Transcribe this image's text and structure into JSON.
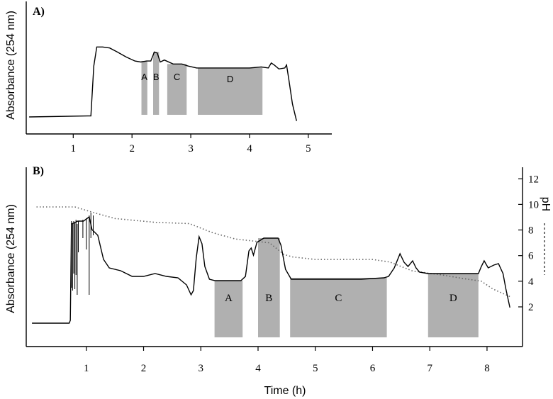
{
  "chart_data": [
    {
      "panel": "A)",
      "type": "line",
      "ylabel": "Absorbance (254 nm)",
      "xlabel": "",
      "xlim": [
        0.2,
        5.4
      ],
      "x_ticks": [
        1,
        2,
        3,
        4,
        5
      ],
      "x_tick_labels": [
        "1",
        "2",
        "3",
        "4",
        "5"
      ],
      "ylim": [
        0,
        1
      ],
      "series": [
        {
          "name": "Absorbance (254 nm)",
          "points": [
            [
              0.25,
              0.17
            ],
            [
              1.25,
              0.18
            ],
            [
              1.3,
              0.18
            ],
            [
              1.35,
              0.68
            ],
            [
              1.4,
              0.87
            ],
            [
              1.5,
              0.87
            ],
            [
              1.62,
              0.86
            ],
            [
              1.75,
              0.82
            ],
            [
              1.9,
              0.77
            ],
            [
              2.05,
              0.73
            ],
            [
              2.15,
              0.72
            ],
            [
              2.25,
              0.73
            ],
            [
              2.32,
              0.73
            ],
            [
              2.38,
              0.82
            ],
            [
              2.43,
              0.81
            ],
            [
              2.48,
              0.72
            ],
            [
              2.55,
              0.74
            ],
            [
              2.7,
              0.7
            ],
            [
              2.85,
              0.7
            ],
            [
              2.95,
              0.68
            ],
            [
              3.1,
              0.66
            ],
            [
              3.5,
              0.66
            ],
            [
              4.0,
              0.66
            ],
            [
              4.2,
              0.67
            ],
            [
              4.32,
              0.66
            ],
            [
              4.37,
              0.71
            ],
            [
              4.42,
              0.69
            ],
            [
              4.5,
              0.65
            ],
            [
              4.6,
              0.66
            ],
            [
              4.63,
              0.69
            ],
            [
              4.67,
              0.54
            ],
            [
              4.73,
              0.3
            ],
            [
              4.8,
              0.13
            ]
          ]
        }
      ],
      "fractions": [
        {
          "label": "A",
          "x_start": 2.16,
          "x_end": 2.26,
          "y_top": 0.73
        },
        {
          "label": "B",
          "x_start": 2.36,
          "x_end": 2.46,
          "y_top": 0.82
        },
        {
          "label": "C",
          "x_start": 2.6,
          "x_end": 2.93,
          "y_top": 0.7
        },
        {
          "label": "D",
          "x_start": 3.12,
          "x_end": 4.22,
          "y_top": 0.66
        }
      ]
    },
    {
      "panel": "B)",
      "type": "line",
      "ylabel": "Absorbance (254 nm)",
      "xlabel": "Time (h)",
      "xlim": [
        -0.05,
        8.62
      ],
      "x_ticks": [
        1,
        2,
        3,
        4,
        5,
        6,
        7,
        8
      ],
      "x_tick_labels": [
        "1",
        "2",
        "3",
        "4",
        "5",
        "6",
        "7",
        "8"
      ],
      "ylim": [
        0,
        1
      ],
      "y2label": "pH",
      "y2lim": [
        -1.1,
        12.9
      ],
      "y2_ticks": [
        2,
        4,
        6,
        8,
        10,
        12
      ],
      "y2_tick_labels": [
        "2",
        "4",
        "6",
        "8",
        "10",
        "12"
      ],
      "series": [
        {
          "name": "Absorbance (254 nm)",
          "points": [
            [
              0.05,
              0.1
            ],
            [
              0.7,
              0.1
            ],
            [
              0.72,
              0.12
            ],
            [
              0.74,
              0.8
            ],
            [
              0.8,
              0.81
            ],
            [
              0.85,
              0.82
            ],
            [
              0.95,
              0.82
            ],
            [
              1.05,
              0.85
            ],
            [
              1.1,
              0.76
            ],
            [
              1.2,
              0.72
            ],
            [
              1.3,
              0.55
            ],
            [
              1.4,
              0.49
            ],
            [
              1.6,
              0.47
            ],
            [
              1.8,
              0.43
            ],
            [
              2.0,
              0.43
            ],
            [
              2.2,
              0.45
            ],
            [
              2.4,
              0.43
            ],
            [
              2.6,
              0.42
            ],
            [
              2.75,
              0.37
            ],
            [
              2.83,
              0.3
            ],
            [
              2.87,
              0.33
            ],
            [
              2.92,
              0.56
            ],
            [
              2.97,
              0.71
            ],
            [
              3.02,
              0.66
            ],
            [
              3.07,
              0.5
            ],
            [
              3.15,
              0.41
            ],
            [
              3.25,
              0.4
            ],
            [
              3.7,
              0.4
            ],
            [
              3.78,
              0.43
            ],
            [
              3.84,
              0.61
            ],
            [
              3.88,
              0.63
            ],
            [
              3.92,
              0.58
            ],
            [
              3.98,
              0.67
            ],
            [
              4.1,
              0.7
            ],
            [
              4.35,
              0.7
            ],
            [
              4.4,
              0.65
            ],
            [
              4.48,
              0.48
            ],
            [
              4.58,
              0.41
            ],
            [
              5.2,
              0.41
            ],
            [
              5.8,
              0.41
            ],
            [
              6.2,
              0.42
            ],
            [
              6.28,
              0.43
            ],
            [
              6.38,
              0.49
            ],
            [
              6.48,
              0.59
            ],
            [
              6.55,
              0.53
            ],
            [
              6.62,
              0.5
            ],
            [
              6.7,
              0.54
            ],
            [
              6.76,
              0.49
            ],
            [
              6.82,
              0.46
            ],
            [
              6.97,
              0.45
            ],
            [
              7.5,
              0.45
            ],
            [
              7.85,
              0.45
            ],
            [
              7.9,
              0.5
            ],
            [
              7.95,
              0.54
            ],
            [
              8.02,
              0.49
            ],
            [
              8.12,
              0.51
            ],
            [
              8.2,
              0.52
            ],
            [
              8.28,
              0.45
            ],
            [
              8.33,
              0.34
            ],
            [
              8.4,
              0.21
            ]
          ]
        },
        {
          "name": "pH",
          "axis": "right",
          "points": [
            [
              0.13,
              9.8
            ],
            [
              0.8,
              9.8
            ],
            [
              1.1,
              9.4
            ],
            [
              1.5,
              8.9
            ],
            [
              2.2,
              8.6
            ],
            [
              2.8,
              8.5
            ],
            [
              3.2,
              7.8
            ],
            [
              3.6,
              7.3
            ],
            [
              4.2,
              7.0
            ],
            [
              4.45,
              6.1
            ],
            [
              4.6,
              5.9
            ],
            [
              5.0,
              5.7
            ],
            [
              6.0,
              5.7
            ],
            [
              6.3,
              5.5
            ],
            [
              6.7,
              4.8
            ],
            [
              7.2,
              4.5
            ],
            [
              7.6,
              4.2
            ],
            [
              7.9,
              4.0
            ],
            [
              8.1,
              3.4
            ],
            [
              8.4,
              2.8
            ]
          ]
        }
      ],
      "fractions": [
        {
          "label": "A",
          "x_start": 3.24,
          "x_end": 3.73,
          "y_top": 0.4
        },
        {
          "label": "B",
          "x_start": 4.0,
          "x_end": 4.38,
          "y_top": 0.7
        },
        {
          "label": "C",
          "x_start": 4.56,
          "x_end": 6.25,
          "y_top": 0.42
        },
        {
          "label": "D",
          "x_start": 6.97,
          "x_end": 7.85,
          "y_top": 0.45
        }
      ]
    }
  ]
}
